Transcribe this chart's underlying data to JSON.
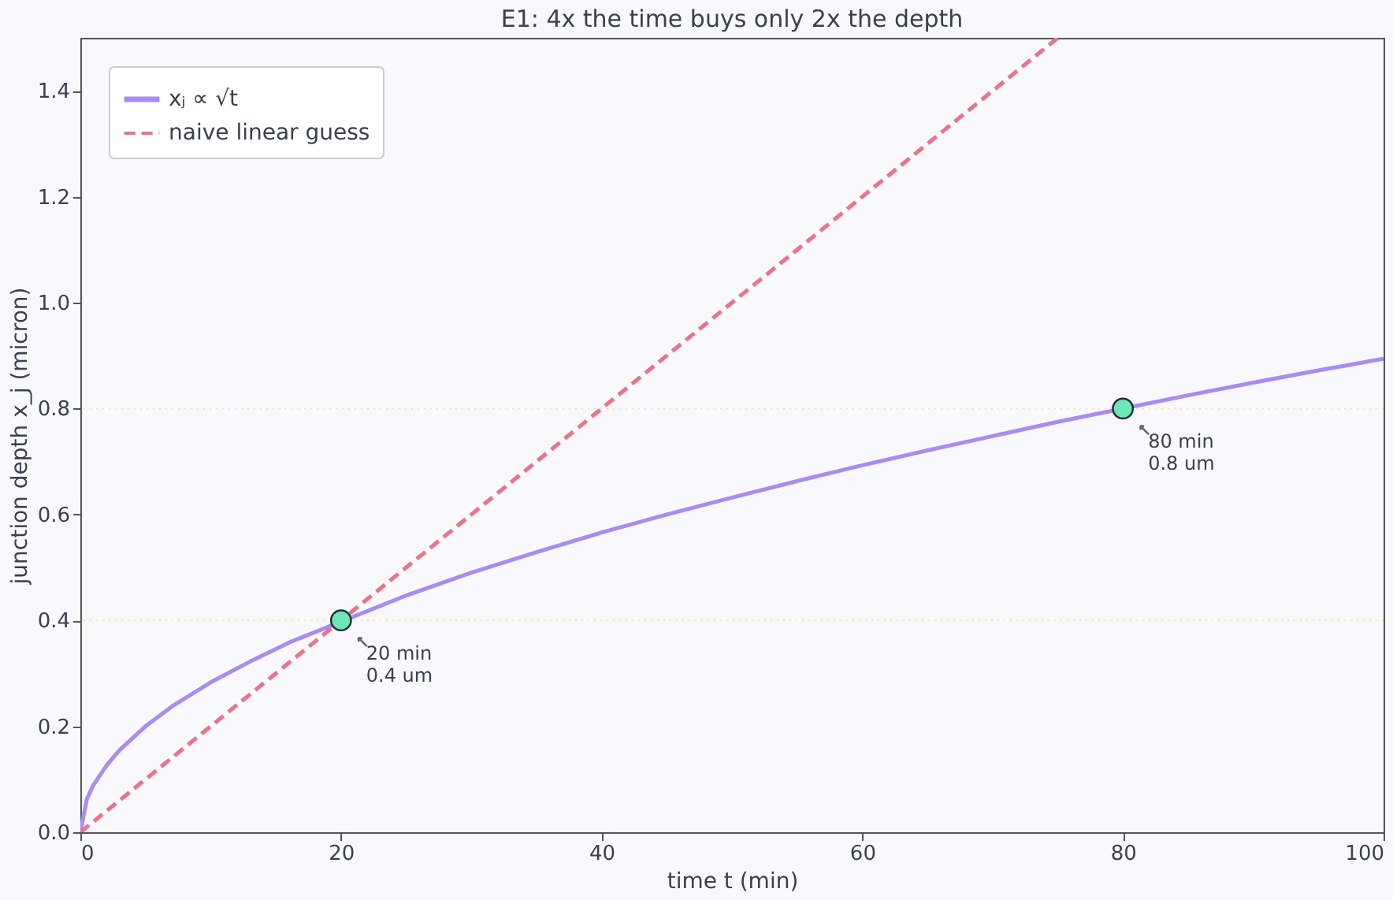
{
  "chart_data": {
    "type": "line",
    "title": "E1: 4x the time buys only 2x the depth",
    "xlabel": "time  t  (min)",
    "ylabel": "junction depth  x_j  (micron)",
    "xlim": [
      0,
      100
    ],
    "xticks": [
      0,
      20,
      40,
      60,
      80,
      100
    ],
    "ylim": [
      0,
      1.5
    ],
    "yticks": [
      {
        "value": 0,
        "label": "0.0"
      },
      {
        "value": 0.2,
        "label": "0.2"
      },
      {
        "value": 0.4,
        "label": "0.4"
      },
      {
        "value": 0.6,
        "label": "0.6"
      },
      {
        "value": 0.8,
        "label": "0.8"
      },
      {
        "value": 1.0,
        "label": "1.0"
      },
      {
        "value": 1.2,
        "label": "1.2"
      },
      {
        "value": 1.4,
        "label": "1.4"
      }
    ],
    "grid": false,
    "legend": "top left",
    "series": [
      {
        "name": "xⱼ ∝ √t",
        "color": "#a78bfa",
        "line_style": "solid",
        "x": [
          0,
          0.5,
          1,
          2,
          3,
          5,
          7,
          10,
          13,
          16,
          25,
          30,
          35,
          40,
          45,
          50,
          55,
          60,
          65,
          70,
          75,
          85,
          90,
          95,
          100
        ],
        "values": [
          0,
          0.063,
          0.089,
          0.126,
          0.155,
          0.2,
          0.237,
          0.283,
          0.322,
          0.358,
          0.447,
          0.49,
          0.529,
          0.566,
          0.6,
          0.632,
          0.663,
          0.693,
          0.721,
          0.748,
          0.775,
          0.825,
          0.849,
          0.872,
          0.894
        ]
      },
      {
        "name": "naive linear guess",
        "color": "#f07186",
        "line_style": "dashed",
        "x": [
          0,
          75
        ],
        "values": [
          0,
          1.5
        ]
      },
      {
        "type": "scatter",
        "color": "#6ee7b7",
        "marker": "circle",
        "x": [
          20,
          80
        ],
        "values": [
          0.4,
          0.8
        ]
      }
    ],
    "ref_lines": [
      {
        "axis": "y",
        "value": 0.4,
        "color": "#fde68a",
        "line_style": "dotted"
      },
      {
        "axis": "y",
        "value": 0.8,
        "color": "#fde68a",
        "line_style": "dotted"
      }
    ],
    "annotations": [
      {
        "text": "20 min\n0.4 um",
        "x": 20,
        "y": 0.4
      },
      {
        "text": "80 min\n0.8 um",
        "x": 80,
        "y": 0.8
      }
    ]
  }
}
